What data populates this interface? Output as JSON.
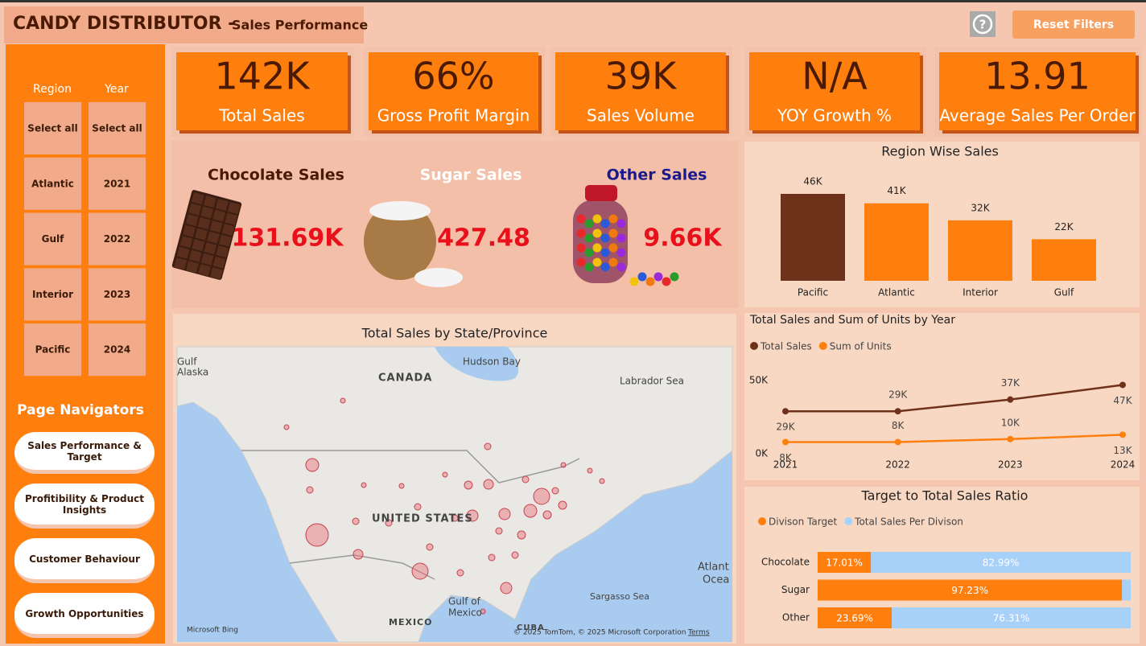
{
  "header": {
    "title": "CANDY DISTRIBUTOR -",
    "subtitle": "Sales Performance",
    "help": "?",
    "reset_button": "Reset Filters"
  },
  "slicers": [
    {
      "title": "Region",
      "items": [
        "Select all",
        "Atlantic",
        "Gulf",
        "Interior",
        "Pacific"
      ]
    },
    {
      "title": "Year",
      "items": [
        "Select all",
        "2021",
        "2022",
        "2023",
        "2024"
      ]
    }
  ],
  "navigation": {
    "title": "Page Navigators",
    "buttons": [
      "Sales Performance & Target",
      "Profitibility & Product Insights",
      "Customer Behaviour",
      "Growth Opportunities"
    ]
  },
  "kpis": [
    {
      "value": "142K",
      "label": "Total Sales"
    },
    {
      "value": "66%",
      "label": "Gross Profit Margin"
    },
    {
      "value": "39K",
      "label": "Sales Volume"
    },
    {
      "value": "N/A",
      "label": "YOY Growth %"
    },
    {
      "value": "13.91",
      "label": "Average Sales Per Order"
    }
  ],
  "products": [
    {
      "name": "Chocolate Sales",
      "value": "131.69K"
    },
    {
      "name": "Sugar Sales",
      "value": "427.48"
    },
    {
      "name": "Other Sales",
      "value": "9.66K"
    }
  ],
  "map": {
    "title": "Total Sales by State/Province",
    "labels": [
      "Gulf",
      "Alaska",
      "Hudson Bay",
      "CANADA",
      "Labrador Sea",
      "UNITED STATES",
      "Atlant",
      "Ocea",
      "Sargasso Sea",
      "Gulf of",
      "Mexico",
      "MEXICO",
      "CUBA",
      "Microsoft Bing",
      "© 2025 TomTom, © 2025 Microsoft Corporation",
      "Terms"
    ]
  },
  "chart_data": [
    {
      "type": "bar",
      "title": "Region Wise Sales",
      "categories": [
        "Pacific",
        "Atlantic",
        "Interior",
        "Gulf"
      ],
      "values": [
        46000,
        41000,
        32000,
        22000
      ],
      "value_labels": [
        "46K",
        "41K",
        "32K",
        "22K"
      ],
      "colors": [
        "#6e3119",
        "#ff7f0e",
        "#ff7f0e",
        "#ff7f0e"
      ]
    },
    {
      "type": "line",
      "title": "Total Sales and Sum of Units by Year",
      "categories": [
        "2021",
        "2022",
        "2023",
        "2024"
      ],
      "series": [
        {
          "name": "Total Sales",
          "color": "#6e3119",
          "values": [
            29000,
            29000,
            37000,
            47000
          ],
          "value_labels": [
            "29K",
            "29K",
            "37K",
            "47K"
          ]
        },
        {
          "name": "Sum of Units",
          "color": "#ff7f0e",
          "values": [
            8000,
            8000,
            10000,
            13000
          ],
          "value_labels": [
            "8K",
            "8K",
            "10K",
            "13K"
          ]
        }
      ],
      "ylim": [
        0,
        50000
      ],
      "yticks": [
        {
          "value": 0,
          "label": "0K"
        },
        {
          "value": 50000,
          "label": "50K"
        }
      ],
      "grid": false,
      "legend": "top-left"
    },
    {
      "type": "bar",
      "orientation": "horizontal",
      "stacked": true,
      "title": "Target to Total Sales Ratio",
      "categories": [
        "Chocolate",
        "Sugar",
        "Other"
      ],
      "series": [
        {
          "name": "Divison Target",
          "color": "#ff7f0e",
          "values": [
            17.01,
            97.23,
            23.69
          ],
          "value_labels": [
            "17.01%",
            "97.23%",
            "23.69%"
          ]
        },
        {
          "name": "Total Sales Per Divison",
          "color": "#a7d1f8",
          "values": [
            82.99,
            2.77,
            76.31
          ],
          "value_labels": [
            "82.99%",
            null,
            "76.31%"
          ]
        }
      ],
      "xlim": [
        0,
        100
      ],
      "legend": "top-left"
    }
  ]
}
